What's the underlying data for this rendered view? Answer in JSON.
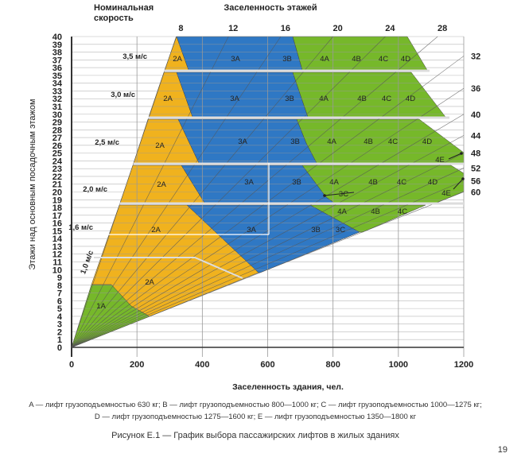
{
  "chart_data": {
    "type": "area",
    "title": "Рисунок Е.1 — График выбора пассажирских лифтов в жилых зданиях",
    "xlabel": "Заселенность здания, чел.",
    "ylabel": "Этажи над основным посадочным этажом",
    "top_label": "Заселенность этажей",
    "speed_header": [
      "Номинальная",
      "скорость"
    ],
    "xlim": [
      0,
      1200
    ],
    "ylim": [
      0,
      40
    ],
    "x_ticks": [
      "0",
      "200",
      "400",
      "600",
      "800",
      "1000",
      "1200"
    ],
    "y_ticks": [
      "0",
      "1",
      "2",
      "3",
      "4",
      "5",
      "6",
      "7",
      "8",
      "9",
      "10",
      "11",
      "12",
      "13",
      "14",
      "15",
      "16",
      "17",
      "18",
      "19",
      "20",
      "21",
      "22",
      "23",
      "24",
      "25",
      "26",
      "27",
      "28",
      "29",
      "30",
      "31",
      "32",
      "33",
      "34",
      "35",
      "36",
      "37",
      "38",
      "39",
      "40"
    ],
    "floor_occupancy_rays": [
      8,
      12,
      16,
      20,
      24,
      28,
      32,
      36,
      40,
      44,
      48,
      52,
      56,
      60
    ],
    "floor_occupancy_labels_top": [
      "8",
      "12",
      "16",
      "20",
      "24",
      "28"
    ],
    "floor_occupancy_labels_right": [
      "32",
      "36",
      "40",
      "44",
      "48",
      "52",
      "56",
      "60"
    ],
    "speed_bands": [
      {
        "speed": "3,5 м/с",
        "floors": [
          36,
          40
        ],
        "regions": [
          "2A",
          "3A",
          "3B",
          "4A",
          "4B",
          "4C",
          "4D"
        ]
      },
      {
        "speed": "3,0 м/с",
        "floors": [
          30,
          35
        ],
        "regions": [
          "2A",
          "3A",
          "3B",
          "4A",
          "4B",
          "4C",
          "4D"
        ]
      },
      {
        "speed": "2,5 м/с",
        "floors": [
          24,
          29
        ],
        "regions": [
          "2A",
          "3A",
          "3B",
          "4A",
          "4B",
          "4C",
          "4D",
          "4E"
        ]
      },
      {
        "speed": "2,0 м/с",
        "floors": [
          19,
          23
        ],
        "regions": [
          "2A",
          "3A",
          "3B",
          "4A",
          "4B",
          "4C",
          "4D",
          "4E",
          "3C"
        ]
      },
      {
        "speed": "1,6 м/с",
        "floors": [
          12,
          18
        ],
        "regions": [
          "2A",
          "3A",
          "3B",
          "3C",
          "4A",
          "4B",
          "4C"
        ]
      },
      {
        "speed": "1,0 м/с",
        "floors": [
          0,
          11
        ],
        "regions": [
          "2A",
          "1A"
        ]
      }
    ],
    "colors": {
      "yellow": "#F0B21E",
      "blue": "#2F78C4",
      "green": "#76B82A"
    }
  },
  "legend": [
    "A — лифт грузоподъемностью 630 кг; В — лифт грузоподъемностью 800—1000 кг; С — лифт грузоподъемностью 1000—1275 кг;",
    "D — лифт грузоподъемностью 1275—1600 кг; Е — лифт грузоподъемностью 1350—1800 кг"
  ],
  "caption": "Рисунок Е.1 — График выбора пассажирских лифтов в жилых зданиях",
  "page_number": "19"
}
